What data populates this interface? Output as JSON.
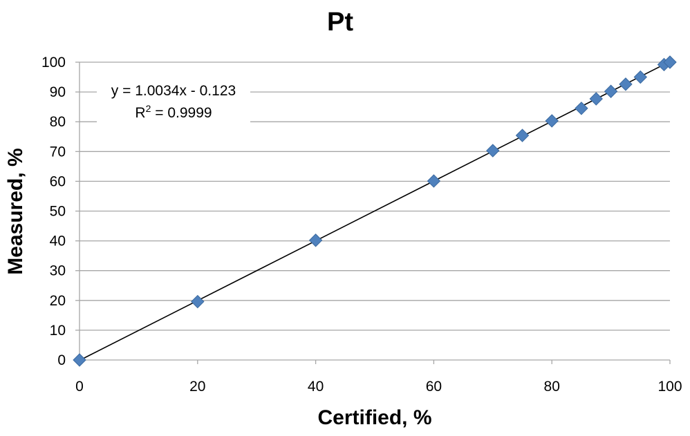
{
  "chart_data": {
    "type": "scatter",
    "title": "Pt",
    "xlabel": "Certified, %",
    "ylabel": "Measured, %",
    "xlim": [
      0,
      100
    ],
    "ylim": [
      0,
      100
    ],
    "x_ticks": [
      0,
      20,
      40,
      60,
      80,
      100
    ],
    "y_ticks": [
      0,
      10,
      20,
      30,
      40,
      50,
      60,
      70,
      80,
      90,
      100
    ],
    "grid": "horizontal",
    "legend": "none",
    "marker": "diamond",
    "colors": {
      "points": "#4f81bd",
      "trendline": "#000000",
      "grid": "#a6a6a6"
    },
    "series": [
      {
        "x": [
          0,
          20,
          40,
          60,
          70,
          75,
          80,
          85,
          87.5,
          90,
          92.5,
          95,
          99,
          100
        ],
        "y": [
          0,
          19.6,
          40.2,
          60.1,
          70.3,
          75.4,
          80.3,
          84.5,
          87.7,
          90.2,
          92.6,
          95.0,
          99.2,
          100
        ]
      }
    ],
    "trendline": {
      "slope": 1.0034,
      "intercept": -0.123,
      "equation": "y = 1.0034x - 0.123",
      "r2_prefix": "R",
      "r2_exp": "2",
      "r2_suffix": " = 0.9999"
    }
  }
}
